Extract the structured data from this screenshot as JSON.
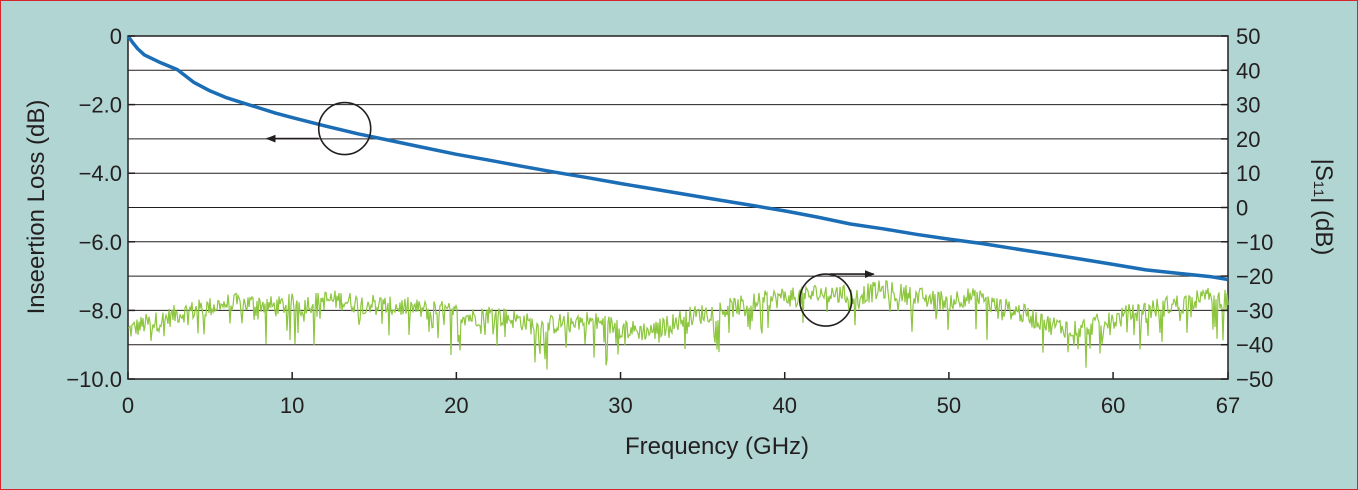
{
  "chart_data": {
    "type": "line",
    "xlabel": "Frequency (GHz)",
    "ylabel_left": "Inseertion Loss (dB)",
    "ylabel_right": "|S₁₁| (dB)",
    "xlim": [
      0,
      67
    ],
    "ylim_left": [
      -10,
      0
    ],
    "ylim_right": [
      -50,
      50
    ],
    "x_ticks": [
      "0",
      "10",
      "20",
      "30",
      "40",
      "50",
      "60",
      "67"
    ],
    "x_tick_values": [
      0,
      10,
      20,
      30,
      40,
      50,
      60,
      67
    ],
    "y_left_ticks": [
      "0",
      "−2.0",
      "−4.0",
      "−6.0",
      "−8.0",
      "−10.0"
    ],
    "y_left_tick_values": [
      0,
      -2,
      -4,
      -6,
      -8,
      -10
    ],
    "y_right_ticks": [
      "50",
      "40",
      "30",
      "20",
      "10",
      "0",
      "−10",
      "−20",
      "−30",
      "−40",
      "−50"
    ],
    "y_right_tick_values": [
      50,
      40,
      30,
      20,
      10,
      0,
      -10,
      -20,
      -30,
      -40,
      -50
    ],
    "grid": true,
    "series": [
      {
        "axis": "left",
        "color": "#1b6db5",
        "x": [
          0,
          0.3,
          0.6,
          1,
          2,
          3,
          4,
          5,
          6,
          7,
          8,
          9,
          10,
          12,
          14,
          16,
          18,
          20,
          22,
          24,
          26,
          28,
          30,
          32,
          34,
          36,
          38,
          40,
          42,
          44,
          46,
          48,
          50,
          52,
          54,
          56,
          58,
          60,
          62,
          64,
          66,
          67
        ],
        "y": [
          0,
          -0.2,
          -0.38,
          -0.55,
          -0.78,
          -0.98,
          -1.35,
          -1.6,
          -1.8,
          -1.95,
          -2.1,
          -2.25,
          -2.38,
          -2.62,
          -2.85,
          -3.05,
          -3.25,
          -3.45,
          -3.62,
          -3.8,
          -3.97,
          -4.13,
          -4.3,
          -4.46,
          -4.62,
          -4.78,
          -4.94,
          -5.1,
          -5.28,
          -5.48,
          -5.62,
          -5.78,
          -5.92,
          -6.05,
          -6.2,
          -6.35,
          -6.5,
          -6.66,
          -6.82,
          -6.92,
          -7.02,
          -7.1
        ]
      },
      {
        "axis": "right",
        "color": "#8dc63f",
        "x": [
          0,
          1,
          2,
          3,
          4,
          5,
          6,
          7,
          8,
          9,
          10,
          11,
          12,
          13,
          14,
          15,
          16,
          17,
          18,
          19,
          20,
          21,
          22,
          23,
          24,
          25,
          26,
          27,
          28,
          29,
          30,
          31,
          32,
          33,
          34,
          35,
          36,
          37,
          38,
          39,
          40,
          41,
          42,
          43,
          44,
          45,
          46,
          47,
          48,
          49,
          50,
          51,
          52,
          53,
          54,
          55,
          56,
          57,
          58,
          59,
          60,
          61,
          62,
          63,
          64,
          65,
          66,
          67
        ],
        "y": [
          -36,
          -34,
          -33,
          -31,
          -30,
          -29,
          -28,
          -28,
          -28,
          -29,
          -28,
          -28,
          -27,
          -27,
          -28,
          -28,
          -29,
          -29,
          -30,
          -30,
          -31,
          -32,
          -31,
          -32,
          -33,
          -35,
          -34,
          -33,
          -33,
          -34,
          -35,
          -36,
          -36,
          -34,
          -32,
          -31,
          -30,
          -29,
          -28,
          -27,
          -26,
          -26,
          -25,
          -25,
          -26,
          -25,
          -24,
          -25,
          -26,
          -27,
          -27,
          -26,
          -27,
          -29,
          -30,
          -32,
          -34,
          -35,
          -35,
          -34,
          -33,
          -31,
          -30,
          -29,
          -28,
          -27,
          -26,
          -27
        ]
      }
    ],
    "annotations": [
      {
        "type": "circle-arrow",
        "target_axis": "left",
        "arrow": "left",
        "x": 13.2,
        "y_left": -2.7
      },
      {
        "type": "circle-arrow",
        "target_axis": "right",
        "arrow": "right",
        "x": 42.5,
        "y_right": -27
      }
    ]
  }
}
